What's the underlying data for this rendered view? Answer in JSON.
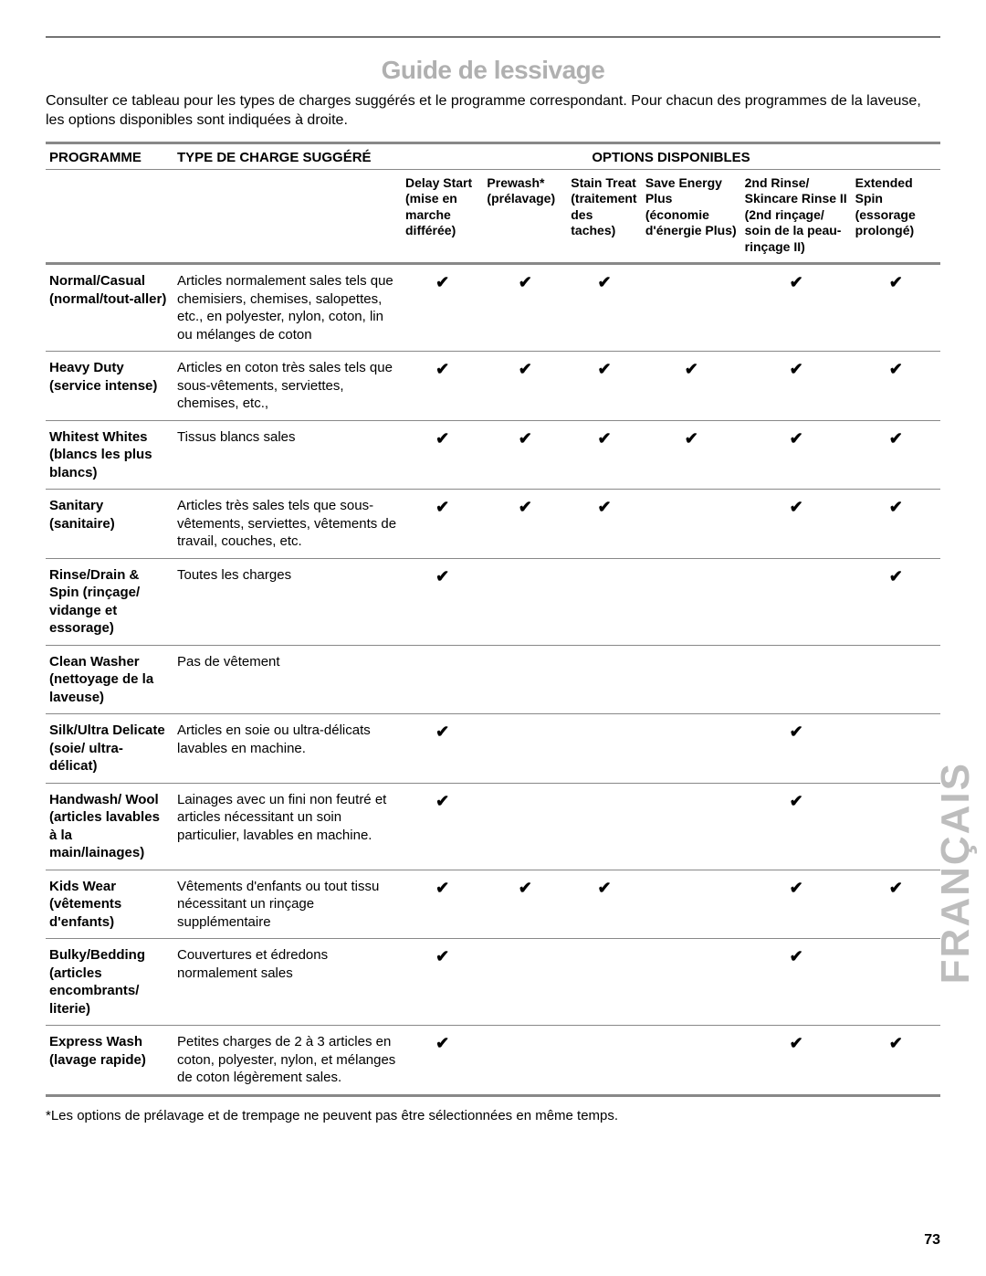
{
  "title": "Guide de lessivage",
  "intro": "Consulter ce tableau pour les types de charges suggérés et le programme correspondant. Pour chacun des programmes de la laveuse, les options disponibles sont indiquées à droite.",
  "header": {
    "programme": "PROGRAMME",
    "load": "TYPE DE CHARGE SUGGÉRÉ",
    "options": "OPTIONS DISPONIBLES",
    "cols": [
      "Delay Start (mise en marche différée)",
      "Prewash* (prélavage)",
      "Stain Treat (traite­ment des taches)",
      "Save Energy Plus (économie d'énergie Plus)",
      "2nd Rinse/ Skincare Rinse II (2nd rinçage/ soin de la peau- rinçage II)",
      "Extended Spin (essorage prolongé)"
    ]
  },
  "check": "✔",
  "rows": [
    {
      "prog": "Normal/Casual (normal/tout-aller)",
      "load": "Articles normalement sales tels que chemisiers, chemises, salopettes, etc., en polyester, nylon, coton, lin ou mélanges de coton",
      "opts": [
        true,
        true,
        true,
        false,
        true,
        true
      ]
    },
    {
      "prog": "Heavy Duty (service intense)",
      "load": "Articles en coton très sales tels que sous-vêtements, serviettes, chemises, etc.,",
      "opts": [
        true,
        true,
        true,
        true,
        true,
        true
      ]
    },
    {
      "prog": "Whitest Whites (blancs les plus blancs)",
      "load": "Tissus blancs sales",
      "opts": [
        true,
        true,
        true,
        true,
        true,
        true
      ]
    },
    {
      "prog": "Sanitary (sanitaire)",
      "load": "Articles très sales tels que sous-vêtements, serviettes, vêtements de travail, couches, etc.",
      "opts": [
        true,
        true,
        true,
        false,
        true,
        true
      ]
    },
    {
      "prog": "Rinse/Drain & Spin (rinçage/ vidange et essorage)",
      "load": "Toutes les charges",
      "opts": [
        true,
        false,
        false,
        false,
        false,
        true
      ]
    },
    {
      "prog": "Clean Washer (nettoyage de la laveuse)",
      "load": "Pas de vêtement",
      "opts": [
        false,
        false,
        false,
        false,
        false,
        false
      ]
    },
    {
      "prog": "Silk/Ultra Delicate (soie/ ultra-délicat)",
      "load": "Articles en soie ou ultra-délicats lavables en machine.",
      "opts": [
        true,
        false,
        false,
        false,
        true,
        false
      ]
    },
    {
      "prog": "Handwash/ Wool (articles lavables à la main/lainages)",
      "load": "Lainages avec un fini non feutré et articles nécessitant un soin particulier, lavables en machine.",
      "opts": [
        true,
        false,
        false,
        false,
        true,
        false
      ]
    },
    {
      "prog": "Kids Wear (vêtements d'enfants)",
      "load": "Vêtements d'enfants ou tout tissu nécessitant un rinçage supplémentaire",
      "opts": [
        true,
        true,
        true,
        false,
        true,
        true
      ]
    },
    {
      "prog": "Bulky/Bedding (articles encombrants/ literie)",
      "load": "Couvertures et édredons normalement sales",
      "opts": [
        true,
        false,
        false,
        false,
        true,
        false
      ]
    },
    {
      "prog": "Express Wash (lavage rapide)",
      "load": "Petites charges de 2 à 3 articles en coton, polyester, nylon, et mélanges de coton légèrement sales.",
      "opts": [
        true,
        false,
        false,
        false,
        true,
        true
      ]
    }
  ],
  "footnote": "*Les options de prélavage et de trempage ne peuvent pas être sélectionnées en même temps.",
  "pagenum": "73",
  "sidetext": "FRANÇAIS"
}
